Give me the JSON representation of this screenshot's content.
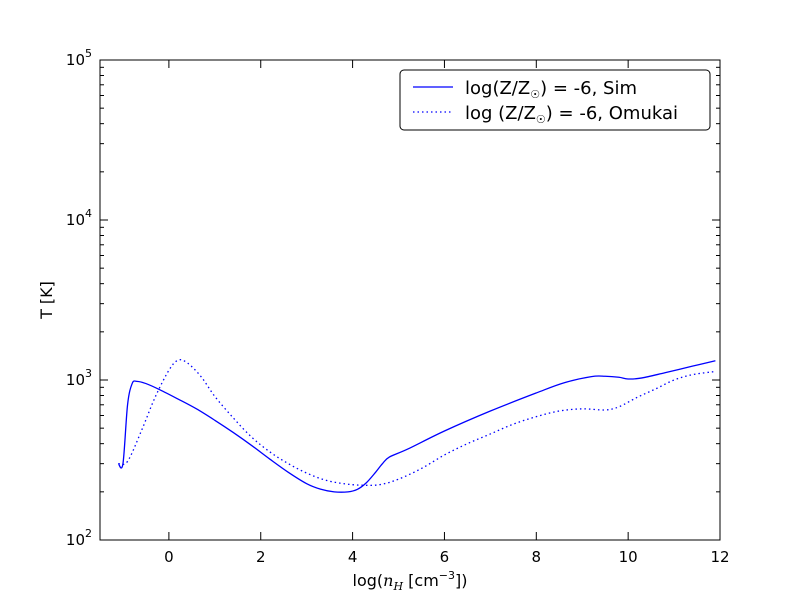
{
  "chart_data": {
    "type": "line",
    "title": "",
    "xlabel": {
      "prefix": "log(",
      "var": "n",
      "sub": "H",
      "unit": " [cm",
      "exp": "−3",
      "suffix": "])"
    },
    "ylabel": "T [K]",
    "xlim": [
      -1.5,
      12
    ],
    "ylim": [
      100,
      100000
    ],
    "yscale": "log",
    "grid": false,
    "legend_position": "top-right",
    "x_ticks": [
      0,
      2,
      4,
      6,
      8,
      10,
      12
    ],
    "x_tick_labels": [
      "0",
      "2",
      "4",
      "6",
      "8",
      "10",
      "12"
    ],
    "y_ticks": [
      {
        "value": 100,
        "base": "10",
        "exp": "2"
      },
      {
        "value": 1000,
        "base": "10",
        "exp": "3"
      },
      {
        "value": 10000,
        "base": "10",
        "exp": "4"
      },
      {
        "value": 100000,
        "base": "10",
        "exp": "5"
      }
    ],
    "series": [
      {
        "name": "log(Z/Z☉) = -6, Sim",
        "legend": {
          "a": "log(Z/Z",
          "b": ") = -6, Sim"
        },
        "style": "solid",
        "color": "#0000ff",
        "x": [
          -1.1,
          -1.0,
          -0.9,
          -0.8,
          -0.7,
          -0.5,
          -0.2,
          0.2,
          0.6,
          1.0,
          1.4,
          1.8,
          2.2,
          2.6,
          3.0,
          3.3,
          3.6,
          3.9,
          4.1,
          4.3,
          4.5,
          4.65,
          4.8,
          5.2,
          6.0,
          7.0,
          8.0,
          8.6,
          9.2,
          9.5,
          9.8,
          10.0,
          10.3,
          10.8,
          11.4,
          11.9
        ],
        "y": [
          300,
          300,
          700,
          950,
          980,
          950,
          870,
          760,
          660,
          560,
          470,
          390,
          320,
          265,
          225,
          208,
          200,
          200,
          207,
          228,
          265,
          300,
          330,
          370,
          480,
          640,
          830,
          960,
          1050,
          1055,
          1040,
          1015,
          1030,
          1110,
          1220,
          1320
        ]
      },
      {
        "name": "log (Z/Z☉) = -6, Omukai",
        "legend": {
          "a": "log (Z/Z",
          "b": ") = -6, Omukai"
        },
        "style": "dotted",
        "color": "#0000ff",
        "x": [
          -1.1,
          -0.9,
          -0.6,
          -0.3,
          0.0,
          0.2,
          0.4,
          0.7,
          1.0,
          1.4,
          1.8,
          2.2,
          2.6,
          3.0,
          3.4,
          3.8,
          4.2,
          4.6,
          5.0,
          5.5,
          6.0,
          6.5,
          7.0,
          7.5,
          8.0,
          8.5,
          9.0,
          9.5,
          9.8,
          10.2,
          10.6,
          11.0,
          11.4,
          11.9
        ],
        "y": [
          300,
          310,
          480,
          780,
          1150,
          1330,
          1280,
          1050,
          790,
          580,
          440,
          355,
          300,
          262,
          237,
          225,
          220,
          222,
          240,
          280,
          340,
          400,
          460,
          530,
          590,
          640,
          660,
          650,
          680,
          780,
          880,
          1000,
          1080,
          1130
        ]
      }
    ]
  }
}
